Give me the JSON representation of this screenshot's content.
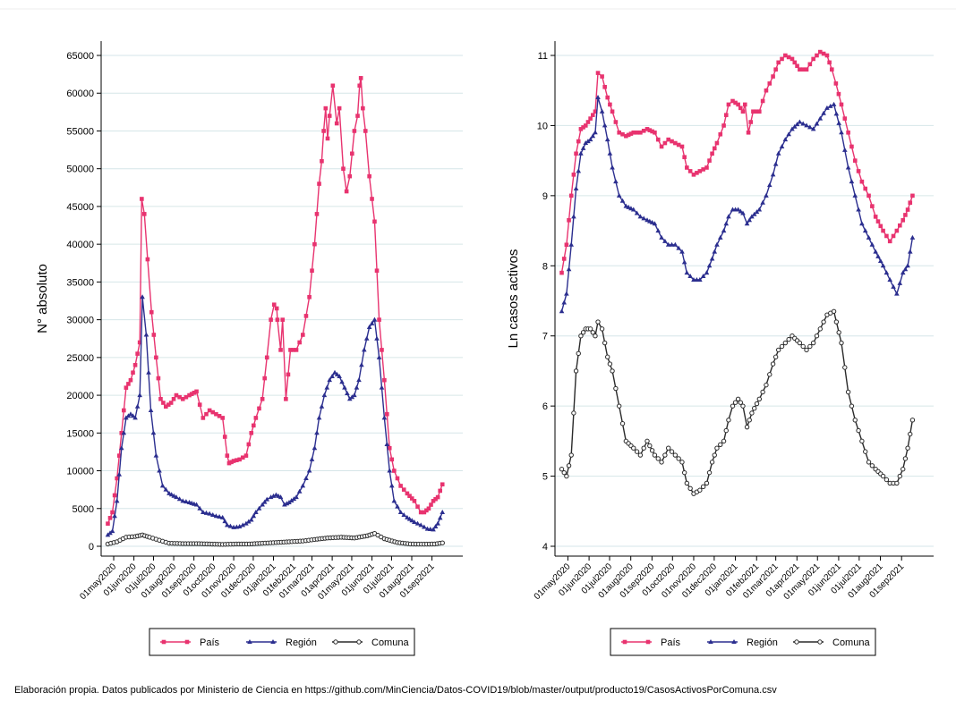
{
  "caption": "Elaboración propia. Datos publicados por Ministerio de Ciencia en https://github.com/MinCiencia/Datos-COVID19/blob/master/output/producto19/CasosActivosPorComuna.csv",
  "colors": {
    "pais": "#e8336f",
    "region": "#2b2e8f",
    "comuna": "#2a2a2a",
    "grid": "#d6e6e8"
  },
  "chart_data": [
    {
      "type": "line",
      "ylabel": "N° absoluto",
      "xlabel": "",
      "ylim": [
        0,
        65000
      ],
      "yticks": [
        0,
        5000,
        10000,
        15000,
        20000,
        25000,
        30000,
        35000,
        40000,
        45000,
        50000,
        55000,
        60000,
        65000
      ],
      "xrange": [
        "2020-04-20",
        "2021-10-10"
      ],
      "xticks": [
        "01may2020",
        "01jun2020",
        "01jul2020",
        "01aug2020",
        "01sep2020",
        "01oct2020",
        "01nov2020",
        "01dec2020",
        "01jan2021",
        "01feb2021",
        "01mar2021",
        "01apr2021",
        "01may2021",
        "01jun2021",
        "01jul2021",
        "01aug2021",
        "01sep2021"
      ],
      "grid": true,
      "legend_position": "bottom",
      "series": [
        {
          "name": "País",
          "marker": "square",
          "color": "#e8336f",
          "x": [
            "2020-04-22",
            "2020-04-29",
            "2020-05-06",
            "2020-05-13",
            "2020-05-20",
            "2020-05-27",
            "2020-06-03",
            "2020-06-10",
            "2020-06-13",
            "2020-06-17",
            "2020-06-22",
            "2020-06-28",
            "2020-07-05",
            "2020-07-12",
            "2020-07-20",
            "2020-07-28",
            "2020-08-05",
            "2020-08-15",
            "2020-08-25",
            "2020-09-05",
            "2020-09-15",
            "2020-09-25",
            "2020-10-05",
            "2020-10-15",
            "2020-10-22",
            "2020-10-25",
            "2020-11-01",
            "2020-11-10",
            "2020-11-20",
            "2020-11-28",
            "2020-12-05",
            "2020-12-15",
            "2020-12-22",
            "2020-12-28",
            "2021-01-02",
            "2021-01-06",
            "2021-01-07",
            "2021-01-12",
            "2021-01-15",
            "2021-01-20",
            "2021-01-27",
            "2021-02-05",
            "2021-02-15",
            "2021-02-25",
            "2021-03-05",
            "2021-03-12",
            "2021-03-16",
            "2021-03-19",
            "2021-03-22",
            "2021-03-25",
            "2021-03-28",
            "2021-04-02",
            "2021-04-08",
            "2021-04-12",
            "2021-04-18",
            "2021-04-23",
            "2021-04-28",
            "2021-05-05",
            "2021-05-10",
            "2021-05-13",
            "2021-05-15",
            "2021-05-18",
            "2021-05-22",
            "2021-05-28",
            "2021-06-05",
            "2021-06-12",
            "2021-06-20",
            "2021-06-28",
            "2021-07-05",
            "2021-07-15",
            "2021-07-25",
            "2021-08-05",
            "2021-08-15",
            "2021-08-20",
            "2021-08-27",
            "2021-09-03",
            "2021-09-10",
            "2021-09-17"
          ],
          "values": [
            3000,
            4500,
            9000,
            15000,
            21000,
            22000,
            24000,
            27000,
            46000,
            44000,
            38000,
            31000,
            25000,
            19500,
            18500,
            19000,
            20000,
            19500,
            20000,
            20500,
            17000,
            18000,
            17500,
            17000,
            12000,
            11000,
            11300,
            11500,
            12000,
            15000,
            17000,
            19500,
            25000,
            30000,
            32000,
            31500,
            30000,
            26000,
            30000,
            19500,
            26000,
            26000,
            28000,
            33000,
            40000,
            48000,
            51000,
            55000,
            58000,
            54000,
            57000,
            61000,
            56000,
            58000,
            50000,
            47000,
            49000,
            55000,
            57000,
            61000,
            62000,
            58000,
            55000,
            49000,
            43000,
            30000,
            22000,
            13000,
            10000,
            8000,
            7000,
            6000,
            4500,
            4500,
            5000,
            6000,
            6500,
            8200
          ]
        },
        {
          "name": "Región",
          "marker": "triangle",
          "color": "#2b2e8f",
          "x": [
            "2020-04-22",
            "2020-04-29",
            "2020-05-06",
            "2020-05-13",
            "2020-05-20",
            "2020-05-27",
            "2020-06-03",
            "2020-06-10",
            "2020-06-14",
            "2020-06-20",
            "2020-06-27",
            "2020-07-05",
            "2020-07-15",
            "2020-07-25",
            "2020-08-05",
            "2020-08-15",
            "2020-08-25",
            "2020-09-05",
            "2020-09-15",
            "2020-09-25",
            "2020-10-05",
            "2020-10-15",
            "2020-10-22",
            "2020-11-01",
            "2020-11-10",
            "2020-11-20",
            "2020-11-28",
            "2020-12-05",
            "2020-12-15",
            "2020-12-22",
            "2020-12-28",
            "2021-01-05",
            "2021-01-12",
            "2021-01-18",
            "2021-01-25",
            "2021-02-05",
            "2021-02-15",
            "2021-02-25",
            "2021-03-05",
            "2021-03-12",
            "2021-03-20",
            "2021-03-28",
            "2021-04-05",
            "2021-04-12",
            "2021-04-20",
            "2021-04-28",
            "2021-05-05",
            "2021-05-12",
            "2021-05-20",
            "2021-05-28",
            "2021-06-05",
            "2021-06-12",
            "2021-06-20",
            "2021-06-28",
            "2021-07-05",
            "2021-07-15",
            "2021-07-25",
            "2021-08-05",
            "2021-08-15",
            "2021-08-25",
            "2021-09-03",
            "2021-09-10",
            "2021-09-17"
          ],
          "values": [
            1500,
            2000,
            6000,
            13000,
            17000,
            17500,
            17000,
            20000,
            33000,
            28000,
            18000,
            12000,
            8000,
            7000,
            6500,
            6000,
            5800,
            5500,
            4500,
            4300,
            4000,
            3800,
            2800,
            2500,
            2600,
            3000,
            3500,
            4500,
            5500,
            6200,
            6500,
            6800,
            6500,
            5500,
            5800,
            6500,
            8000,
            10000,
            13000,
            17000,
            20000,
            22000,
            23000,
            22500,
            21000,
            19500,
            20000,
            22000,
            26000,
            29000,
            30000,
            25000,
            17000,
            10000,
            6000,
            4500,
            3800,
            3200,
            2800,
            2300,
            2200,
            3000,
            4500
          ]
        },
        {
          "name": "Comuna",
          "marker": "circle",
          "color": "#2a2a2a",
          "x": [
            "2020-04-22",
            "2020-05-06",
            "2020-05-20",
            "2020-06-03",
            "2020-06-14",
            "2020-06-25",
            "2020-07-10",
            "2020-07-25",
            "2020-08-15",
            "2020-09-05",
            "2020-09-25",
            "2020-10-15",
            "2020-11-05",
            "2020-11-25",
            "2020-12-15",
            "2021-01-05",
            "2021-01-25",
            "2021-02-15",
            "2021-03-05",
            "2021-03-25",
            "2021-04-15",
            "2021-05-05",
            "2021-05-25",
            "2021-06-05",
            "2021-06-20",
            "2021-07-10",
            "2021-07-30",
            "2021-08-20",
            "2021-09-05",
            "2021-09-17"
          ],
          "values": [
            300,
            600,
            1200,
            1300,
            1500,
            1200,
            800,
            400,
            350,
            350,
            300,
            250,
            300,
            300,
            400,
            500,
            600,
            700,
            900,
            1100,
            1200,
            1100,
            1400,
            1700,
            1000,
            500,
            300,
            280,
            300,
            450
          ]
        }
      ]
    },
    {
      "type": "line",
      "ylabel": "Ln casos activos",
      "xlabel": "",
      "ylim": [
        4,
        11
      ],
      "yticks": [
        4,
        5,
        6,
        7,
        8,
        9,
        10,
        11
      ],
      "xrange": [
        "2020-04-20",
        "2021-10-10"
      ],
      "xticks": [
        "01may2020",
        "01jun2020",
        "01jul2020",
        "01aug2020",
        "01sep2020",
        "01oct2020",
        "01nov2020",
        "01dec2020",
        "01jan2021",
        "01feb2021",
        "01mar2021",
        "01apr2021",
        "01may2021",
        "01jun2021",
        "01jul2021",
        "01aug2021",
        "01sep2021"
      ],
      "grid": true,
      "legend_position": "bottom",
      "series": [
        {
          "name": "País",
          "marker": "square",
          "color": "#e8336f",
          "x": [
            "2020-04-22",
            "2020-04-29",
            "2020-05-06",
            "2020-05-13",
            "2020-05-20",
            "2020-05-27",
            "2020-06-03",
            "2020-06-10",
            "2020-06-14",
            "2020-06-20",
            "2020-06-28",
            "2020-07-05",
            "2020-07-15",
            "2020-07-25",
            "2020-08-05",
            "2020-08-15",
            "2020-08-25",
            "2020-09-05",
            "2020-09-15",
            "2020-09-25",
            "2020-10-05",
            "2020-10-15",
            "2020-10-22",
            "2020-11-01",
            "2020-11-10",
            "2020-11-20",
            "2020-11-28",
            "2020-12-05",
            "2020-12-15",
            "2020-12-22",
            "2020-12-28",
            "2021-01-05",
            "2021-01-12",
            "2021-01-15",
            "2021-01-20",
            "2021-01-27",
            "2021-02-05",
            "2021-02-15",
            "2021-02-25",
            "2021-03-05",
            "2021-03-15",
            "2021-03-25",
            "2021-04-05",
            "2021-04-15",
            "2021-04-25",
            "2021-05-05",
            "2021-05-15",
            "2021-05-22",
            "2021-05-28",
            "2021-06-05",
            "2021-06-15",
            "2021-06-25",
            "2021-07-05",
            "2021-07-15",
            "2021-07-25",
            "2021-08-05",
            "2021-08-15",
            "2021-08-25",
            "2021-09-03",
            "2021-09-10",
            "2021-09-17"
          ],
          "values": [
            7.9,
            8.3,
            9.0,
            9.6,
            9.95,
            10.0,
            10.1,
            10.2,
            10.75,
            10.7,
            10.4,
            10.2,
            9.9,
            9.85,
            9.9,
            9.9,
            9.95,
            9.9,
            9.7,
            9.8,
            9.75,
            9.7,
            9.4,
            9.3,
            9.35,
            9.4,
            9.6,
            9.75,
            10.0,
            10.3,
            10.35,
            10.3,
            10.2,
            10.3,
            9.9,
            10.2,
            10.2,
            10.5,
            10.7,
            10.9,
            11.0,
            10.95,
            10.8,
            10.8,
            10.95,
            11.05,
            11.0,
            10.8,
            10.6,
            10.3,
            9.9,
            9.5,
            9.2,
            9.0,
            8.7,
            8.5,
            8.35,
            8.5,
            8.65,
            8.8,
            9.0
          ]
        },
        {
          "name": "Región",
          "marker": "triangle",
          "color": "#2b2e8f",
          "x": [
            "2020-04-22",
            "2020-04-29",
            "2020-05-06",
            "2020-05-13",
            "2020-05-20",
            "2020-05-27",
            "2020-06-03",
            "2020-06-10",
            "2020-06-14",
            "2020-06-20",
            "2020-06-28",
            "2020-07-05",
            "2020-07-15",
            "2020-07-25",
            "2020-08-05",
            "2020-08-15",
            "2020-08-25",
            "2020-09-05",
            "2020-09-15",
            "2020-09-25",
            "2020-10-05",
            "2020-10-15",
            "2020-10-22",
            "2020-11-01",
            "2020-11-10",
            "2020-11-20",
            "2020-11-28",
            "2020-12-05",
            "2020-12-15",
            "2020-12-22",
            "2020-12-28",
            "2021-01-05",
            "2021-01-12",
            "2021-01-18",
            "2021-01-25",
            "2021-02-05",
            "2021-02-15",
            "2021-02-25",
            "2021-03-05",
            "2021-03-15",
            "2021-03-25",
            "2021-04-05",
            "2021-04-15",
            "2021-04-25",
            "2021-05-05",
            "2021-05-15",
            "2021-05-25",
            "2021-06-05",
            "2021-06-15",
            "2021-06-25",
            "2021-07-05",
            "2021-07-15",
            "2021-07-25",
            "2021-08-05",
            "2021-08-15",
            "2021-08-25",
            "2021-09-03",
            "2021-09-10",
            "2021-09-17"
          ],
          "values": [
            7.35,
            7.6,
            8.3,
            9.1,
            9.6,
            9.75,
            9.8,
            9.9,
            10.4,
            10.2,
            9.8,
            9.4,
            9.0,
            8.85,
            8.8,
            8.7,
            8.65,
            8.6,
            8.4,
            8.3,
            8.3,
            8.2,
            7.9,
            7.8,
            7.8,
            7.9,
            8.1,
            8.3,
            8.5,
            8.7,
            8.8,
            8.8,
            8.75,
            8.6,
            8.7,
            8.8,
            9.0,
            9.3,
            9.6,
            9.8,
            9.95,
            10.05,
            10.0,
            9.95,
            10.1,
            10.25,
            10.3,
            9.9,
            9.4,
            9.0,
            8.6,
            8.4,
            8.2,
            8.0,
            7.8,
            7.6,
            7.9,
            8.0,
            8.4
          ]
        },
        {
          "name": "Comuna",
          "marker": "circle",
          "color": "#2a2a2a",
          "x": [
            "2020-04-22",
            "2020-04-29",
            "2020-05-06",
            "2020-05-13",
            "2020-05-20",
            "2020-05-27",
            "2020-06-03",
            "2020-06-10",
            "2020-06-14",
            "2020-06-20",
            "2020-06-28",
            "2020-07-05",
            "2020-07-15",
            "2020-07-25",
            "2020-08-05",
            "2020-08-15",
            "2020-08-25",
            "2020-09-05",
            "2020-09-15",
            "2020-09-25",
            "2020-10-05",
            "2020-10-15",
            "2020-10-22",
            "2020-11-01",
            "2020-11-10",
            "2020-11-20",
            "2020-11-28",
            "2020-12-05",
            "2020-12-15",
            "2020-12-22",
            "2020-12-28",
            "2021-01-05",
            "2021-01-12",
            "2021-01-18",
            "2021-01-25",
            "2021-02-05",
            "2021-02-15",
            "2021-02-25",
            "2021-03-05",
            "2021-03-15",
            "2021-03-25",
            "2021-04-05",
            "2021-04-15",
            "2021-04-25",
            "2021-05-05",
            "2021-05-15",
            "2021-05-25",
            "2021-06-05",
            "2021-06-15",
            "2021-06-25",
            "2021-07-05",
            "2021-07-15",
            "2021-07-25",
            "2021-08-05",
            "2021-08-15",
            "2021-08-25",
            "2021-09-03",
            "2021-09-10",
            "2021-09-17"
          ],
          "values": [
            5.1,
            5.0,
            5.3,
            6.5,
            7.0,
            7.1,
            7.1,
            7.0,
            7.2,
            7.1,
            6.7,
            6.5,
            6.0,
            5.5,
            5.4,
            5.3,
            5.5,
            5.3,
            5.2,
            5.4,
            5.3,
            5.2,
            4.9,
            4.75,
            4.8,
            4.9,
            5.2,
            5.4,
            5.5,
            5.8,
            6.0,
            6.1,
            6.0,
            5.7,
            5.9,
            6.1,
            6.3,
            6.6,
            6.8,
            6.9,
            7.0,
            6.9,
            6.8,
            6.9,
            7.1,
            7.3,
            7.35,
            6.9,
            6.2,
            5.8,
            5.5,
            5.2,
            5.1,
            5.0,
            4.9,
            4.9,
            5.1,
            5.4,
            5.8
          ]
        }
      ]
    }
  ]
}
